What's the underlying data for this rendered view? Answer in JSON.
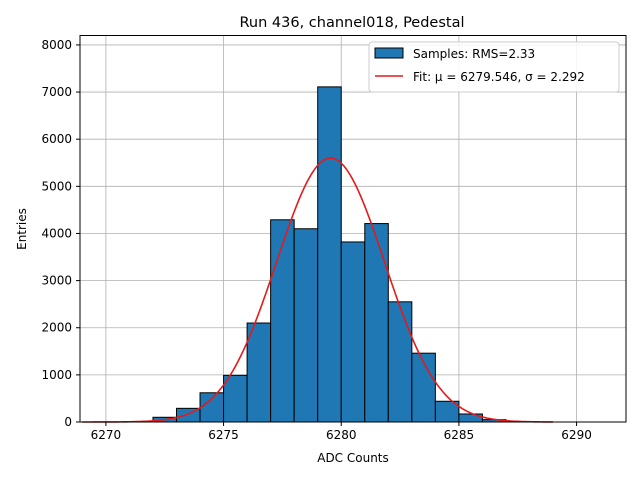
{
  "chart_data": {
    "type": "bar",
    "title": "Run 436, channel018, Pedestal",
    "xlabel": "ADC Counts",
    "ylabel": "Entries",
    "xlim": [
      6268.9,
      6292.1
    ],
    "ylim": [
      0,
      8200
    ],
    "xticks": [
      6270,
      6275,
      6280,
      6285,
      6290
    ],
    "yticks": [
      0,
      1000,
      2000,
      3000,
      4000,
      5000,
      6000,
      7000,
      8000
    ],
    "grid": true,
    "legend_position": "top-right",
    "bin_edges": [
      6272,
      6273,
      6274,
      6275,
      6276,
      6277,
      6278,
      6279,
      6280,
      6281,
      6282,
      6283,
      6284,
      6285,
      6286,
      6287
    ],
    "values": [
      100,
      290,
      620,
      990,
      2100,
      4290,
      4100,
      7110,
      3820,
      4210,
      2550,
      1460,
      440,
      170,
      50
    ],
    "series": [
      {
        "name": "Samples: RMS=2.33",
        "kind": "histogram",
        "color": "#1f77b4"
      },
      {
        "name": "Fit: μ = 6279.546, σ = 2.292",
        "kind": "gaussian_fit",
        "color": "#e41a1c",
        "mu": 6279.546,
        "sigma": 2.292,
        "amplitude": 5600,
        "x_range": [
          6269,
          6289
        ]
      }
    ]
  }
}
